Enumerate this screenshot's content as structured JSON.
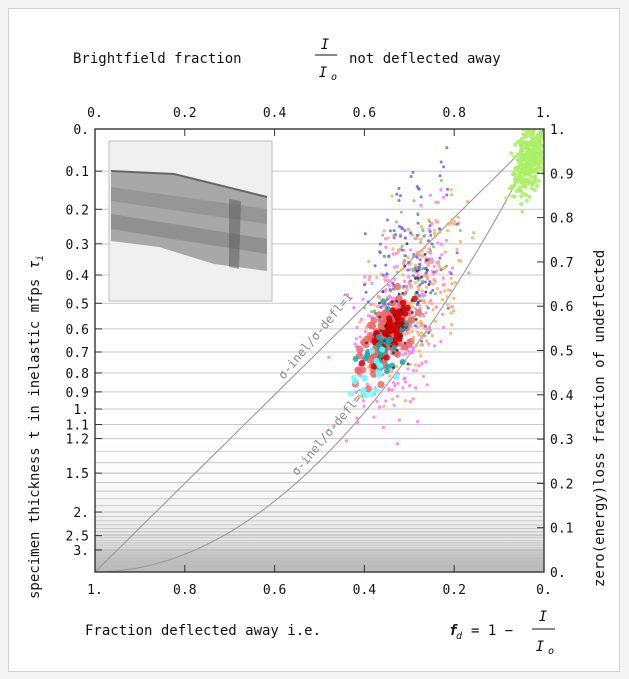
{
  "chart_data": {
    "type": "scatter",
    "axes": {
      "bottom": {
        "label_prefix": "Fraction deflected away i.e.",
        "label_symbol": "f",
        "label_symbol_sub": "d",
        "label_eq": "= 1 −",
        "range": [
          1.0,
          0.0
        ],
        "ticks": [
          "1.",
          "0.8",
          "0.6",
          "0.4",
          "0.2",
          "0."
        ]
      },
      "top": {
        "label_prefix": "Brightfield fraction",
        "label_suffix": "not deflected away",
        "range": [
          0.0,
          1.0
        ],
        "ticks": [
          "0.",
          "0.2",
          "0.4",
          "0.6",
          "0.8",
          "1."
        ]
      },
      "left": {
        "label": "specimen thickness t in inelastic mfps",
        "label_symbol": "τ",
        "label_symbol_sub": "i",
        "scale": "log of brightfield fraction, τ = −ln(I/Io)",
        "ticks": [
          "0.",
          "0.1",
          "0.2",
          "0.3",
          "0.4",
          "0.5",
          "0.6",
          "0.7",
          "0.8",
          "0.9",
          "1.",
          "1.1",
          "1.2",
          "1.5",
          "2.",
          "2.5",
          "3."
        ],
        "tick_values": [
          0,
          0.1,
          0.2,
          0.3,
          0.4,
          0.5,
          0.6,
          0.7,
          0.8,
          0.9,
          1.0,
          1.1,
          1.2,
          1.5,
          2.0,
          2.5,
          3.0
        ]
      },
      "right": {
        "label": "zero(energy)loss fraction of undeflected",
        "range": [
          0.0,
          1.0
        ],
        "ticks": [
          "0.",
          "0.1",
          "0.2",
          "0.3",
          "0.4",
          "0.5",
          "0.6",
          "0.7",
          "0.8",
          "0.9",
          "1."
        ]
      }
    },
    "fraction_symbol_num": "I",
    "fraction_symbol_den": "I",
    "fraction_symbol_den_sub": "o",
    "guide_lines": [
      {
        "label": "σ-inel/σ-defl=1",
        "slope": 1.0
      },
      {
        "label": "σ-inel/σ-defl=2",
        "slope": 2.0
      }
    ],
    "grid": "horizontal, at left-axis thickness ticks",
    "inset_image": "micrograph of specimen (top-left)",
    "series": [
      {
        "color": "#ff77ff",
        "points_summary": "broad diffuse cloud",
        "center": [
          0.69,
          0.58
        ]
      },
      {
        "color": "#ffaa66",
        "points_summary": "orange cloud",
        "center": [
          0.72,
          0.63
        ]
      },
      {
        "color": "#6666ee",
        "points_summary": "blue scatter",
        "center": [
          0.7,
          0.72
        ]
      },
      {
        "color": "#66cc66",
        "points_summary": "green points",
        "center": [
          0.71,
          0.7
        ]
      },
      {
        "color": "#aaee66",
        "points_summary": "light green cluster near top-right",
        "center": [
          0.97,
          0.93
        ]
      },
      {
        "color": "#ee6666",
        "points_summary": "large red cluster",
        "center": [
          0.65,
          0.54
        ]
      },
      {
        "color": "#cc0000",
        "points_summary": "dark red core",
        "center": [
          0.66,
          0.55
        ]
      },
      {
        "color": "#11aaaa",
        "points_summary": "teal points",
        "center": [
          0.64,
          0.5
        ]
      },
      {
        "color": "#66ffff",
        "points_summary": "cyan points",
        "center": [
          0.62,
          0.45
        ]
      },
      {
        "color": "#333333",
        "points_summary": "black points",
        "center": [
          0.68,
          0.58
        ]
      }
    ]
  }
}
